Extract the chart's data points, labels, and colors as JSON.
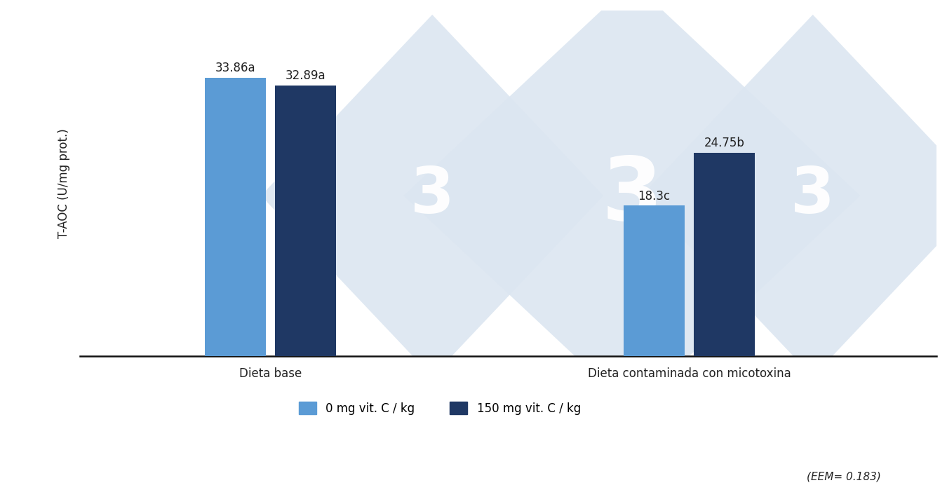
{
  "groups": [
    "Dieta base",
    "Dieta contaminada con micotoxina"
  ],
  "series": [
    {
      "label": "0 mg vit. C / kg",
      "color": "#5b9bd5",
      "values": [
        33.86,
        18.3
      ]
    },
    {
      "label": "150 mg vit. C / kg",
      "color": "#1f3864",
      "values": [
        32.89,
        24.75
      ]
    }
  ],
  "bar_labels": [
    [
      "33.86a",
      "32.89a"
    ],
    [
      "18.3c",
      "24.75b"
    ]
  ],
  "ylabel": "T-AOC (U/mg prot.)",
  "ylim": [
    0,
    42
  ],
  "bar_width": 0.32,
  "group_centers": [
    1.0,
    3.2
  ],
  "xlim": [
    0.0,
    4.5
  ],
  "legend_labels": [
    "0 mg vit. C / kg",
    "150 mg vit. C / kg"
  ],
  "legend_colors": [
    "#5b9bd5",
    "#1f3864"
  ],
  "eem_text": "(EEM= 0.183)",
  "background_color": "#ffffff",
  "label_fontsize": 12,
  "tick_fontsize": 12,
  "ylabel_fontsize": 12,
  "legend_fontsize": 12,
  "eem_fontsize": 11,
  "watermark_color": "#dce6f1",
  "watermark_alpha": 0.9
}
